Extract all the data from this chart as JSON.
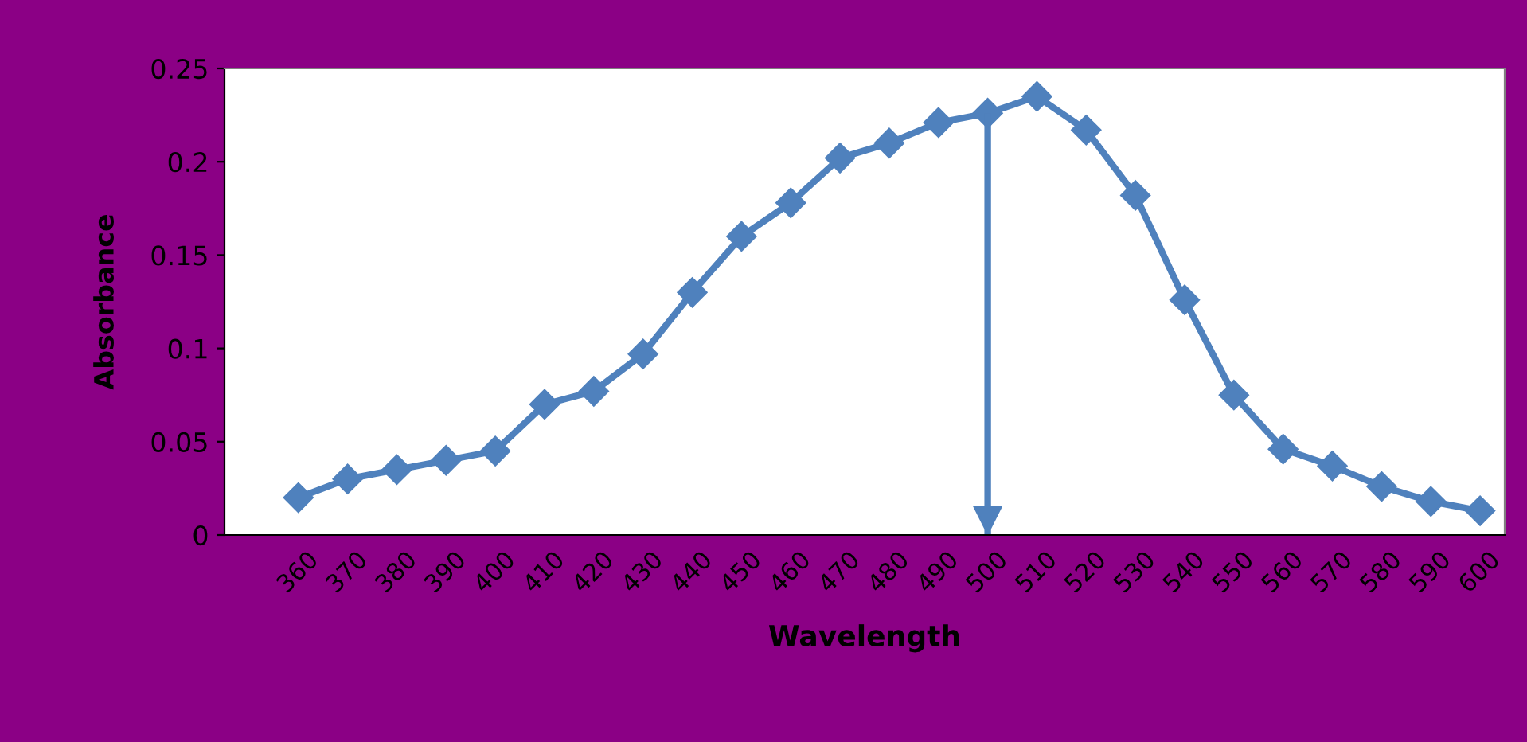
{
  "chart_data": {
    "type": "line",
    "xlabel": "Wavelength",
    "ylabel": "Absorbance",
    "categories": [
      "360",
      "370",
      "380",
      "390",
      "400",
      "410",
      "420",
      "430",
      "440",
      "450",
      "460",
      "470",
      "480",
      "490",
      "500",
      "510",
      "520",
      "530",
      "540",
      "550",
      "560",
      "570",
      "580",
      "590",
      "600"
    ],
    "series": [
      {
        "color": "#4f81bd",
        "values": [
          0.02,
          0.03,
          0.035,
          0.04,
          0.045,
          0.07,
          0.077,
          0.097,
          0.13,
          0.16,
          0.178,
          0.202,
          0.21,
          0.221,
          0.226,
          0.235,
          0.217,
          0.182,
          0.126,
          0.075,
          0.046,
          0.037,
          0.026,
          0.018,
          0.013
        ]
      }
    ],
    "ylim": [
      0,
      0.25
    ],
    "yticks": [
      0,
      0.05,
      0.1,
      0.15,
      0.2,
      0.25
    ],
    "ref_lines": [
      {
        "axis": "x",
        "value": "500",
        "color": "#4f81bd"
      }
    ],
    "marker": "diamond",
    "line_style": "solid",
    "grid": false,
    "legend": false
  }
}
